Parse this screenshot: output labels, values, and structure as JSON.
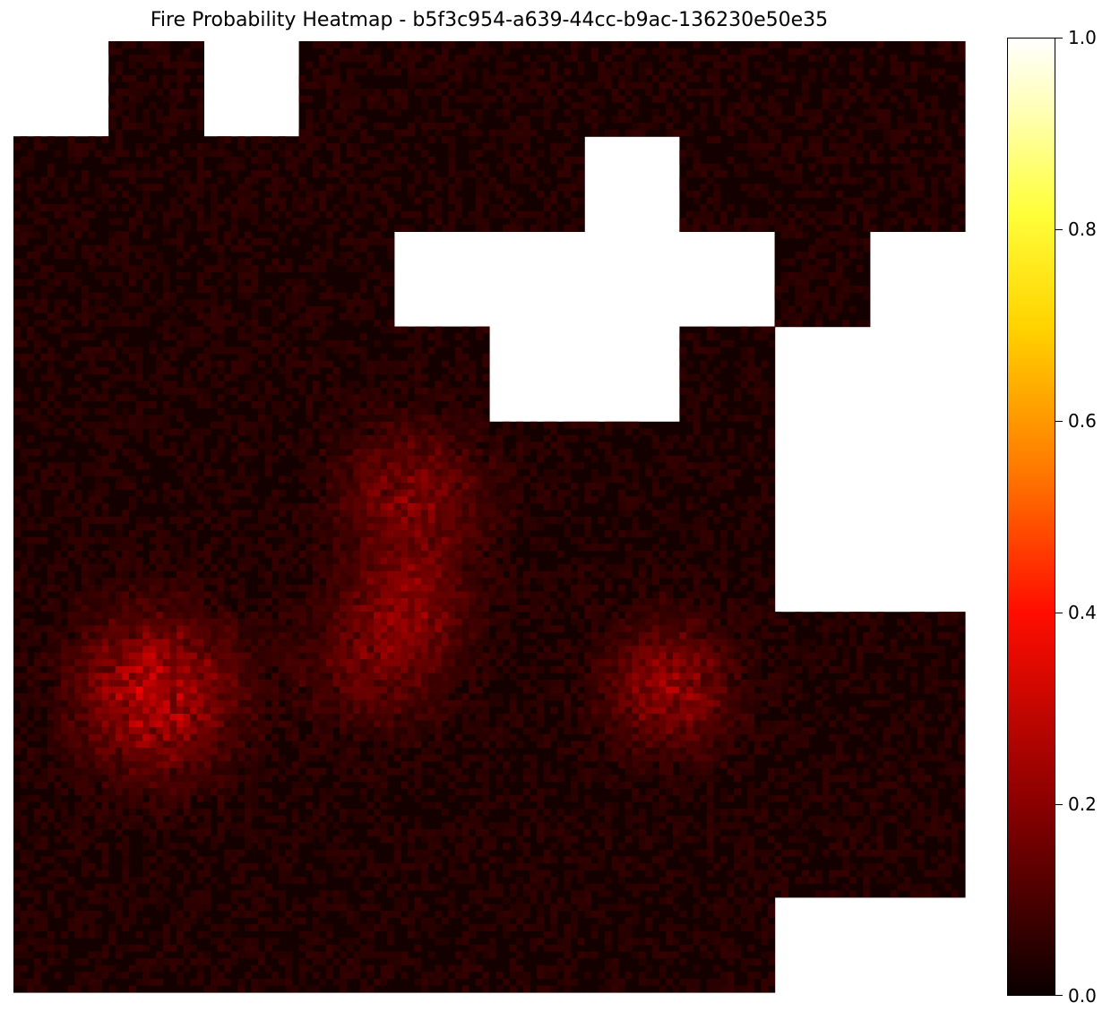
{
  "chart_data": {
    "type": "heatmap",
    "title": "Fire Probability Heatmap - b5f3c954-a639-44cc-b9ac-136230e50e35",
    "colormap": "hot",
    "value_range": [
      0.0,
      1.0
    ],
    "missing_tile_color": "#ffffff",
    "grid_shape": [
      10,
      10
    ],
    "tile_mask": [
      [
        0,
        1,
        0,
        1,
        1,
        1,
        1,
        1,
        1,
        1
      ],
      [
        1,
        1,
        1,
        1,
        1,
        1,
        0,
        1,
        1,
        1
      ],
      [
        1,
        1,
        1,
        1,
        0,
        0,
        0,
        0,
        1,
        0
      ],
      [
        1,
        1,
        1,
        1,
        1,
        0,
        0,
        1,
        0,
        0
      ],
      [
        1,
        1,
        1,
        1,
        1,
        1,
        1,
        1,
        0,
        0
      ],
      [
        1,
        1,
        1,
        1,
        1,
        1,
        1,
        1,
        0,
        0
      ],
      [
        1,
        1,
        1,
        1,
        1,
        1,
        1,
        1,
        1,
        1
      ],
      [
        1,
        1,
        1,
        1,
        1,
        1,
        1,
        1,
        1,
        1
      ],
      [
        1,
        1,
        1,
        1,
        1,
        1,
        1,
        1,
        1,
        1
      ],
      [
        1,
        1,
        1,
        1,
        1,
        1,
        1,
        1,
        0,
        0
      ]
    ],
    "hotspot_max_value": 0.3,
    "colorbar": {
      "ticks": [
        0.0,
        0.2,
        0.4,
        0.6,
        0.8,
        1.0
      ],
      "tick_labels": [
        "0.0",
        "0.2",
        "0.4",
        "0.6",
        "0.8",
        "1.0"
      ]
    }
  }
}
